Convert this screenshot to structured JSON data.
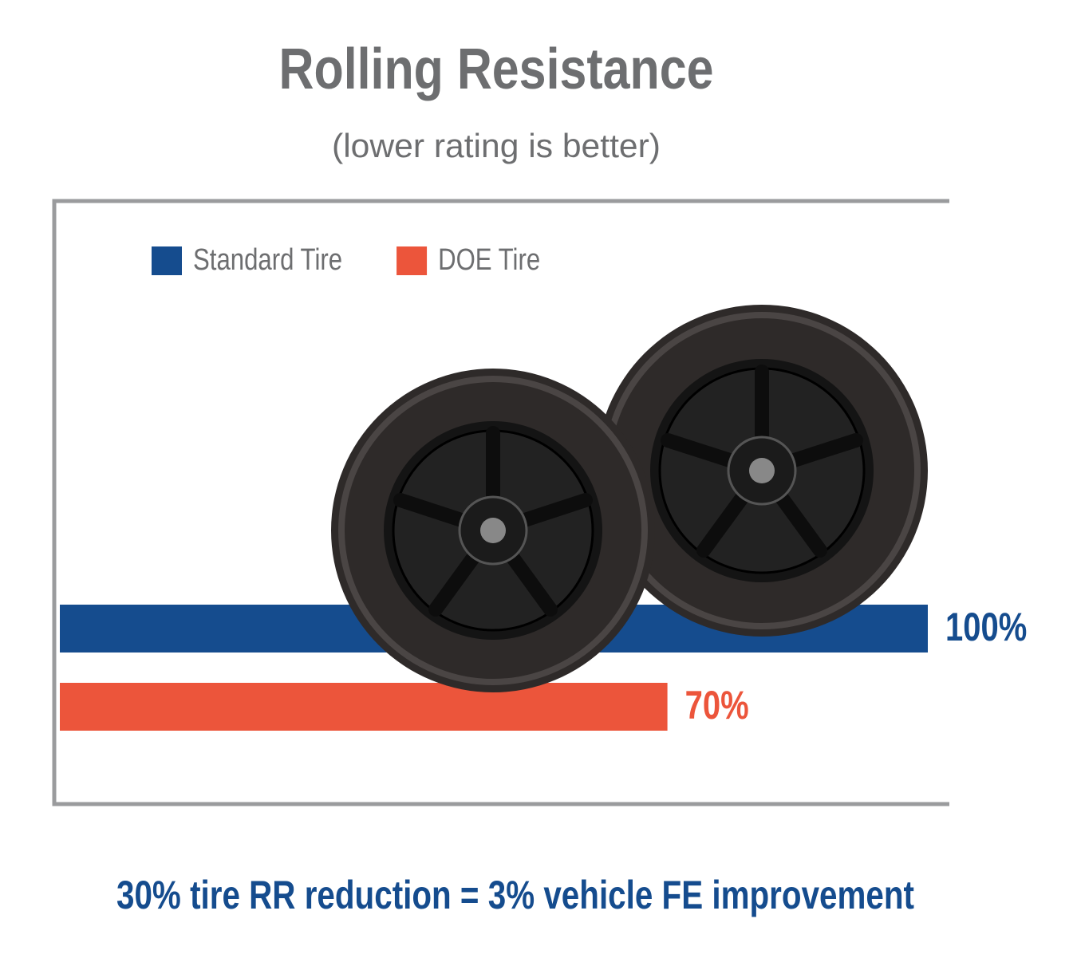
{
  "chart_data": {
    "type": "bar",
    "orientation": "horizontal",
    "title": "Rolling Resistance",
    "subtitle": "(lower rating is better)",
    "series": [
      {
        "name": "Standard Tire",
        "color": "#154c8e",
        "values": [
          100
        ],
        "value_labels": [
          "100%"
        ]
      },
      {
        "name": "DOE Tire",
        "color": "#ec553b",
        "values": [
          70
        ],
        "value_labels": [
          "70%"
        ]
      }
    ],
    "legend": "top-left",
    "annotation": "30% tire RR reduction = 3% vehicle FE improvement"
  }
}
